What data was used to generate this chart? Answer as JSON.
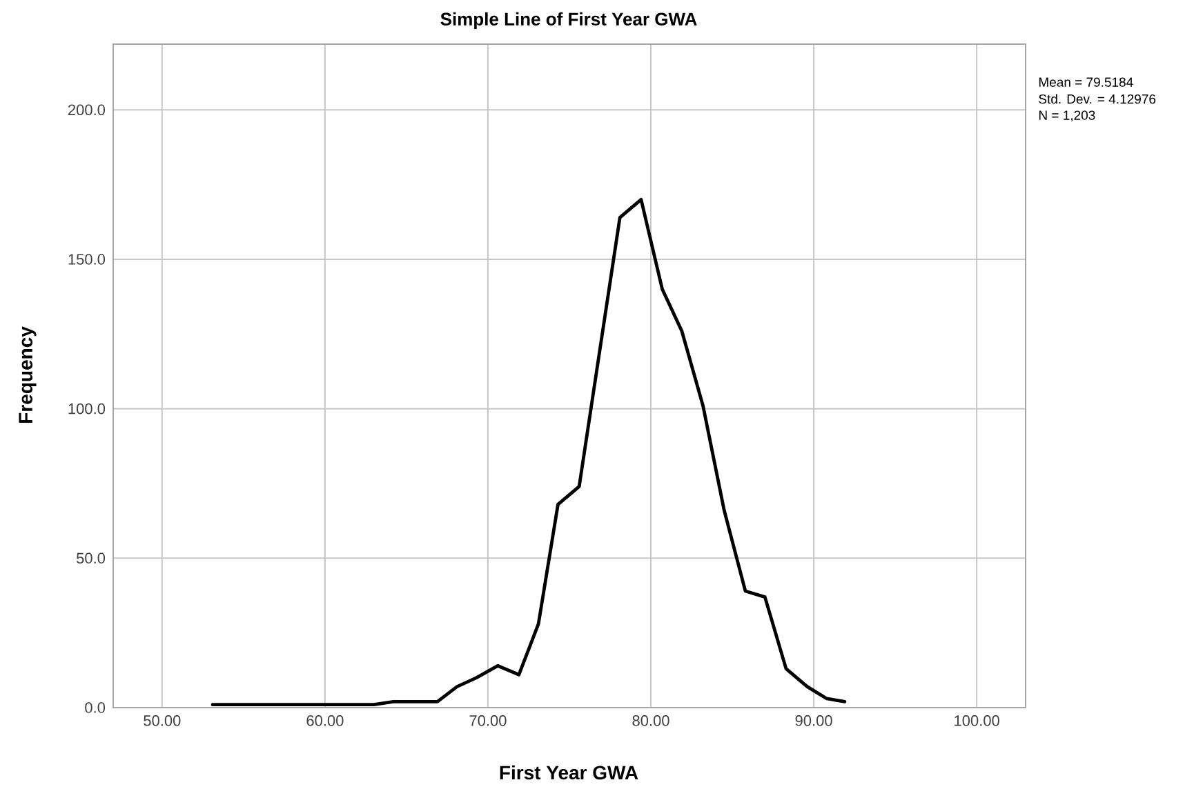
{
  "chart_data": {
    "type": "line",
    "title": "Simple Line of First Year GWA",
    "xlabel": "First Year GWA",
    "ylabel": "Frequency",
    "annotations": [
      "Mean = 79.5184",
      "Std. Dev. = 4.12976",
      "N = 1,203"
    ],
    "x": [
      53.1,
      63.0,
      64.2,
      66.9,
      68.1,
      69.3,
      70.6,
      71.9,
      73.1,
      74.3,
      75.6,
      78.1,
      79.4,
      80.7,
      81.9,
      83.2,
      84.5,
      85.8,
      87.0,
      88.3,
      89.6,
      90.8,
      91.9
    ],
    "series": [
      {
        "color": "#000000",
        "values": [
          1,
          1,
          2,
          2,
          7,
          10,
          14,
          11,
          28,
          68,
          74,
          164,
          170,
          140,
          126,
          101,
          66,
          39,
          37,
          13,
          7,
          3,
          2
        ]
      }
    ],
    "xlim": [
      47,
      103
    ],
    "ylim": [
      0,
      222
    ],
    "xticks": [
      {
        "value": 50,
        "label": "50.00"
      },
      {
        "value": 60,
        "label": "60.00"
      },
      {
        "value": 70,
        "label": "70.00"
      },
      {
        "value": 80,
        "label": "80.00"
      },
      {
        "value": 90,
        "label": "90.00"
      },
      {
        "value": 100,
        "label": "100.00"
      }
    ],
    "yticks": [
      {
        "value": 0,
        "label": "0.0"
      },
      {
        "value": 50,
        "label": "50.0"
      },
      {
        "value": 100,
        "label": "100.0"
      },
      {
        "value": 150,
        "label": "150.0"
      },
      {
        "value": 200,
        "label": "200.0"
      }
    ],
    "grid": true,
    "marker": "none",
    "line_style": "solid"
  }
}
